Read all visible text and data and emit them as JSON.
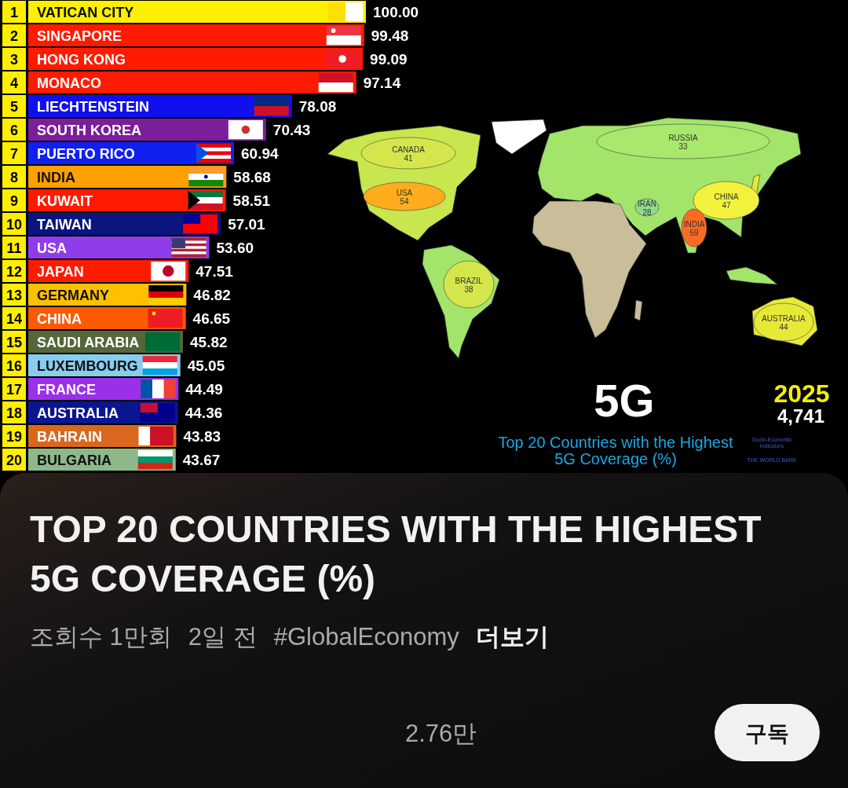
{
  "chart_data": [
    {
      "type": "bar",
      "orientation": "horizontal",
      "categories": [
        "VATICAN CITY",
        "SINGAPORE",
        "HONG KONG",
        "MONACO",
        "LIECHTENSTEIN",
        "SOUTH KOREA",
        "PUERTO RICO",
        "INDIA",
        "KUWAIT",
        "TAIWAN",
        "USA",
        "JAPAN",
        "GERMANY",
        "CHINA",
        "SAUDI ARABIA",
        "LUXEMBOURG",
        "FRANCE",
        "AUSTRALIA",
        "BAHRAIN",
        "BULGARIA"
      ],
      "values": [
        100,
        99.48,
        99.09,
        97.14,
        78.08,
        70.43,
        60.94,
        58.68,
        58.51,
        57.01,
        53.6,
        47.51,
        46.82,
        46.65,
        45.82,
        45.05,
        44.49,
        44.36,
        43.83,
        43.67
      ],
      "value_labels": [
        "100.00",
        "99.48",
        "99.09",
        "97.14",
        "78.08",
        "70.43",
        "60.94",
        "58.68",
        "58.51",
        "57.01",
        "53.60",
        "47.51",
        "46.82",
        "46.65",
        "45.82",
        "45.05",
        "44.49",
        "44.36",
        "43.83",
        "43.67"
      ],
      "colors": [
        "#fff000",
        "#ff1a00",
        "#ff1a00",
        "#ff1a00",
        "#1010ee",
        "#7a1e9a",
        "#1020f0",
        "#ffa000",
        "#ff1a00",
        "#0a1580",
        "#8e3de8",
        "#ff1a00",
        "#ffc000",
        "#ff5a00",
        "#55663a",
        "#88ccf0",
        "#9a30e8",
        "#0a1590",
        "#d9681e",
        "#8db88a"
      ],
      "tick_labels": "y",
      "annotations": [
        "1",
        "2",
        "3",
        "4",
        "5",
        "6",
        "7",
        "8",
        "9",
        "10",
        "11",
        "12",
        "13",
        "14",
        "15",
        "16",
        "17",
        "18",
        "19",
        "20"
      ]
    },
    {
      "type": "other",
      "title": "Top 20 Countries with the Highest 5G Coverage (%)",
      "categories": [
        "CANADA",
        "USA",
        "RUSSIA",
        "CHINA",
        "INDIA",
        "BRAZIL",
        "AUSTRALIA",
        "IRAN"
      ],
      "values": [
        41,
        54,
        33,
        47,
        59,
        38,
        44,
        28
      ],
      "colors": [
        "#d4e64c",
        "#ffad1c",
        "#a8e86c",
        "#f2f23c",
        "#ff6a22",
        "#d4e64c",
        "#e6ea36",
        "#90dc8c"
      ],
      "data_labels": true,
      "annotations": [
        "5G",
        "2025",
        "4,741",
        "Socio-Economic Indicators",
        "THE WORLD BANK"
      ]
    },
    {
      "type": "other",
      "title": "TOP 20 COUNTRIES WITH THE HIGHEST 5G COVERAGE (%)",
      "annotations": [
        "조회수 1만회",
        "2일 전",
        "#GlobalEconomy",
        "더보기",
        "2.76만",
        "구독"
      ]
    }
  ]
}
